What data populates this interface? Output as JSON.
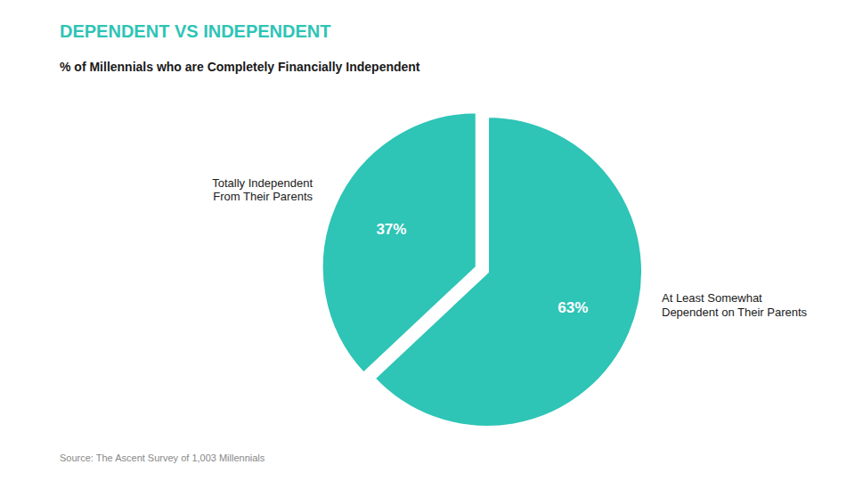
{
  "chart_data": {
    "type": "pie",
    "title": "DEPENDENT VS INDEPENDENT",
    "subtitle": "% of Millennials who are Completely Financially Independent",
    "categories": [
      "At Least Somewhat\nDependent on Their Parents",
      "Totally Independent\nFrom Their Parents"
    ],
    "values": [
      63,
      37
    ],
    "value_labels": [
      "63%",
      "37%"
    ],
    "data_labels": true,
    "color": "#2ec4b6",
    "source": "Source: The Ascent Survey of 1,003 Millennials"
  }
}
